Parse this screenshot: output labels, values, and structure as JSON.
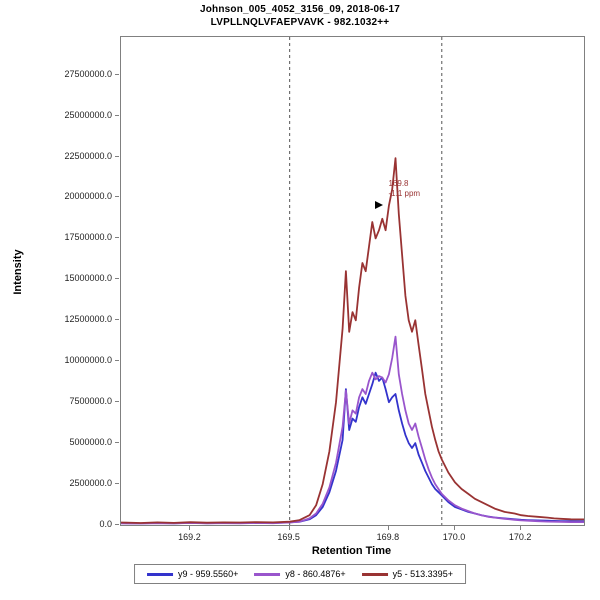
{
  "title": {
    "line1": "Johnson_005_4052_3156_09, 2018-06-17",
    "line2": "LVPLLNQLVFAEPVAVK - 982.1032++"
  },
  "chart_data": {
    "type": "line",
    "title": "Johnson_005_4052_3156_09, 2018-06-17 / LVPLLNQLVFAEPVAVK - 982.1032++",
    "xlabel": "Retention Time",
    "ylabel": "Intensity",
    "xlim": [
      168.99,
      170.39
    ],
    "ylim": [
      0,
      29800000
    ],
    "grid": false,
    "legend_position": "bottom",
    "x_ticks": [
      169.2,
      169.5,
      169.8,
      170.0,
      170.2
    ],
    "x_tick_labels": [
      "169.2",
      "169.5",
      "169.8",
      "170.0",
      "170.2"
    ],
    "y_ticks": [
      0,
      2500000,
      5000000,
      7500000,
      10000000,
      12500000,
      15000000,
      17500000,
      20000000,
      22500000,
      25000000,
      27500000
    ],
    "y_tick_labels": [
      "0.0",
      "2500000.0",
      "5000000.0",
      "7500000.0",
      "10000000.0",
      "12500000.0",
      "15000000.0",
      "17500000.0",
      "20000000.0",
      "22500000.0",
      "25000000.0",
      "27500000.0"
    ],
    "boundaries": [
      169.5,
      169.96
    ],
    "annotation": {
      "rt_label": "169.8",
      "ppm_label": "-1.1 ppm",
      "x": 169.82,
      "y": 22400000,
      "color": "#993333"
    },
    "x": [
      168.99,
      169.05,
      169.1,
      169.15,
      169.2,
      169.25,
      169.3,
      169.35,
      169.4,
      169.45,
      169.5,
      169.53,
      169.56,
      169.58,
      169.6,
      169.62,
      169.64,
      169.66,
      169.67,
      169.68,
      169.69,
      169.7,
      169.71,
      169.72,
      169.73,
      169.74,
      169.75,
      169.76,
      169.77,
      169.78,
      169.79,
      169.8,
      169.81,
      169.82,
      169.83,
      169.84,
      169.85,
      169.86,
      169.87,
      169.88,
      169.89,
      169.9,
      169.91,
      169.92,
      169.93,
      169.94,
      169.95,
      169.96,
      169.98,
      170.0,
      170.02,
      170.04,
      170.06,
      170.08,
      170.1,
      170.12,
      170.15,
      170.18,
      170.2,
      170.22,
      170.25,
      170.28,
      170.3,
      170.32,
      170.35,
      170.39
    ],
    "series": [
      {
        "id": "y9",
        "name": "y9 - 959.5560+",
        "color": "#3333cc",
        "values": [
          110000,
          95000,
          120000,
          100000,
          130000,
          110000,
          120000,
          115000,
          135000,
          120000,
          160000,
          200000,
          350000,
          600000,
          1100000,
          2000000,
          3300000,
          5200000,
          8300000,
          5800000,
          6500000,
          6300000,
          7200000,
          7800000,
          7400000,
          8000000,
          8600000,
          9300000,
          8800000,
          9000000,
          8300000,
          7500000,
          7800000,
          8000000,
          7000000,
          6200000,
          5500000,
          5000000,
          4700000,
          5000000,
          4300000,
          3800000,
          3300000,
          2900000,
          2500000,
          2200000,
          2000000,
          1800000,
          1400000,
          1100000,
          950000,
          800000,
          700000,
          600000,
          520000,
          460000,
          400000,
          350000,
          320000,
          300000,
          280000,
          260000,
          250000,
          240000,
          230000,
          225000
        ]
      },
      {
        "id": "y8",
        "name": "y8 - 860.4876+",
        "color": "#9955cc",
        "values": [
          100000,
          90000,
          110000,
          95000,
          120000,
          100000,
          110000,
          105000,
          125000,
          110000,
          150000,
          200000,
          400000,
          700000,
          1300000,
          2300000,
          3800000,
          6000000,
          8200000,
          6200000,
          7000000,
          6800000,
          7800000,
          8300000,
          8000000,
          8800000,
          9300000,
          8900000,
          9100000,
          9000000,
          8700000,
          9200000,
          10200000,
          11500000,
          9200000,
          8000000,
          7000000,
          6200000,
          5800000,
          6200000,
          5400000,
          4700000,
          4000000,
          3400000,
          2900000,
          2500000,
          2200000,
          1900000,
          1500000,
          1200000,
          1000000,
          850000,
          700000,
          600000,
          500000,
          450000,
          380000,
          320000,
          280000,
          260000,
          230000,
          210000,
          200000,
          190000,
          180000,
          175000
        ]
      },
      {
        "id": "y5",
        "name": "y5 - 513.3395+",
        "color": "#993333",
        "values": [
          150000,
          120000,
          160000,
          130000,
          170000,
          140000,
          160000,
          150000,
          180000,
          160000,
          200000,
          300000,
          600000,
          1200000,
          2500000,
          4500000,
          7500000,
          12000000,
          15500000,
          11800000,
          13000000,
          12500000,
          14500000,
          16000000,
          15500000,
          17000000,
          18500000,
          17500000,
          18000000,
          18700000,
          18000000,
          19500000,
          20500000,
          22400000,
          19000000,
          16500000,
          14000000,
          12500000,
          11800000,
          12500000,
          11000000,
          9500000,
          8000000,
          7000000,
          6000000,
          5200000,
          4500000,
          4000000,
          3200000,
          2600000,
          2200000,
          1900000,
          1600000,
          1400000,
          1200000,
          1000000,
          800000,
          700000,
          600000,
          550000,
          500000,
          450000,
          400000,
          380000,
          350000,
          340000
        ]
      }
    ]
  }
}
